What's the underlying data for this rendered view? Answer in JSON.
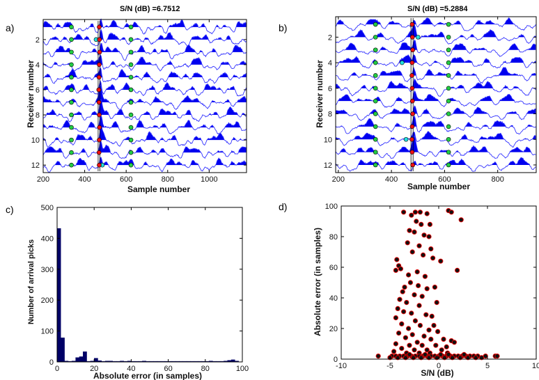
{
  "colors": {
    "trace_fill": "#0000ee",
    "trace_line": "#3333ff",
    "pick_red": "#ee1111",
    "pick_green": "#22cc44",
    "pick_cyan": "#22dddd",
    "hist_bar": "#000066",
    "scatter_fill": "#111111",
    "scatter_edge": "#dd0000"
  },
  "chart_data": [
    {
      "id": "a",
      "type": "line",
      "panel_label": "a)",
      "title": "S/N (dB) =6.7512",
      "xlabel": "Sample number",
      "ylabel": "Receiver number",
      "xlim": [
        200,
        1180
      ],
      "ylim": [
        12.6,
        0.4
      ],
      "xticks": [
        200,
        400,
        600,
        800,
        1000
      ],
      "yticks": [
        2,
        4,
        6,
        8,
        10,
        12
      ],
      "receivers": 12,
      "picks": {
        "green": [
          336,
          623
        ],
        "red": [
          470,
          471,
          472,
          470,
          469,
          468,
          469,
          470,
          471,
          470,
          469,
          470
        ],
        "cyan": [
          null,
          455,
          null,
          null,
          null,
          null,
          null,
          null,
          null,
          null,
          null,
          485
        ]
      }
    },
    {
      "id": "b",
      "type": "line",
      "panel_label": "b)",
      "title": "S/N (dB) =5.2884",
      "xlabel": "Sample number",
      "ylabel": "Receiver number",
      "xlim": [
        190,
        945
      ],
      "ylim": [
        12.6,
        0.4
      ],
      "xticks": [
        200,
        400,
        600,
        800
      ],
      "yticks": [
        2,
        4,
        6,
        8,
        10,
        12
      ],
      "receivers": 12,
      "picks": {
        "green": [
          340,
          615
        ],
        "red": [
          478,
          479,
          480,
          478,
          477,
          478,
          479,
          480,
          478,
          477,
          478,
          480
        ],
        "cyan": [
          null,
          500,
          null,
          440,
          null,
          null,
          null,
          null,
          null,
          455,
          null,
          null
        ]
      }
    },
    {
      "id": "c",
      "type": "bar",
      "panel_label": "c)",
      "xlabel": "Absolute error  (in samples)",
      "ylabel": "Number of arrival picks",
      "xlim": [
        0,
        100
      ],
      "ylim": [
        0,
        500
      ],
      "xticks": [
        0,
        20,
        40,
        60,
        80,
        100
      ],
      "yticks": [
        0,
        100,
        200,
        300,
        400,
        500
      ],
      "bin_width": 2,
      "bin_centers": [
        1,
        3,
        5,
        7,
        9,
        11,
        13,
        15,
        17,
        19,
        21,
        23,
        25,
        27,
        29,
        31,
        33,
        35,
        37,
        39,
        41,
        43,
        45,
        47,
        49,
        51,
        53,
        55,
        57,
        59,
        61,
        63,
        65,
        67,
        69,
        71,
        73,
        75,
        77,
        79,
        81,
        83,
        85,
        87,
        89,
        91,
        93,
        95,
        97
      ],
      "values": [
        432,
        78,
        3,
        2,
        3,
        14,
        17,
        33,
        2,
        3,
        12,
        4,
        2,
        3,
        3,
        2,
        2,
        3,
        2,
        3,
        2,
        2,
        2,
        3,
        2,
        2,
        2,
        2,
        2,
        2,
        2,
        2,
        2,
        2,
        2,
        2,
        2,
        2,
        2,
        2,
        2,
        3,
        2,
        2,
        2,
        3,
        5,
        7,
        3
      ]
    },
    {
      "id": "d",
      "type": "scatter",
      "panel_label": "d)",
      "xlabel": "S/N (dB)",
      "ylabel": "Absolute error (in samples)",
      "xlim": [
        -10,
        10
      ],
      "ylim": [
        0,
        100
      ],
      "xticks": [
        -10,
        -5,
        0,
        5,
        10
      ],
      "yticks": [
        0,
        20,
        40,
        60,
        80,
        100
      ],
      "points": [
        [
          -3.6,
          96
        ],
        [
          -2.4,
          96
        ],
        [
          -1.9,
          96
        ],
        [
          -1.2,
          95
        ],
        [
          1.0,
          97
        ],
        [
          1.3,
          96
        ],
        [
          -2.8,
          94
        ],
        [
          2.3,
          91
        ],
        [
          -2.3,
          90
        ],
        [
          -1.8,
          88
        ],
        [
          -0.9,
          88
        ],
        [
          -3.0,
          84
        ],
        [
          -2.5,
          83
        ],
        [
          -1.5,
          81
        ],
        [
          -1.0,
          80
        ],
        [
          -3.2,
          76
        ],
        [
          -2.0,
          74
        ],
        [
          -0.8,
          72
        ],
        [
          -2.7,
          70
        ],
        [
          -1.6,
          68
        ],
        [
          -0.6,
          66
        ],
        [
          0.2,
          64
        ],
        [
          -4.3,
          65
        ],
        [
          -4.1,
          61
        ],
        [
          -3.9,
          59
        ],
        [
          -4.4,
          58
        ],
        [
          1.9,
          58
        ],
        [
          -2.2,
          57
        ],
        [
          -3.1,
          55
        ],
        [
          -1.4,
          54
        ],
        [
          -2.9,
          50
        ],
        [
          -2.1,
          48
        ],
        [
          -3.5,
          47
        ],
        [
          -0.4,
          47
        ],
        [
          -1.2,
          46
        ],
        [
          -3.7,
          44
        ],
        [
          -2.5,
          42
        ],
        [
          -1.7,
          41
        ],
        [
          -4.0,
          39
        ],
        [
          -3.3,
          37
        ],
        [
          -0.2,
          37
        ],
        [
          -2.0,
          35
        ],
        [
          -4.2,
          33
        ],
        [
          -3.6,
          31
        ],
        [
          -2.8,
          30
        ],
        [
          -1.3,
          29
        ],
        [
          -0.7,
          28
        ],
        [
          -4.4,
          27
        ],
        [
          -2.4,
          25
        ],
        [
          -3.8,
          23
        ],
        [
          -1.9,
          22
        ],
        [
          -0.5,
          22
        ],
        [
          -3.1,
          20
        ],
        [
          -1.0,
          19
        ],
        [
          -0.1,
          18
        ],
        [
          -4.1,
          17
        ],
        [
          -2.7,
          16
        ],
        [
          -1.5,
          15
        ],
        [
          -3.4,
          14
        ],
        [
          -0.8,
          13
        ],
        [
          0.5,
          13
        ],
        [
          1.3,
          12
        ],
        [
          1.6,
          11
        ],
        [
          -2.2,
          11
        ],
        [
          -4.4,
          10
        ],
        [
          -3.0,
          9
        ],
        [
          -1.7,
          9
        ],
        [
          -0.3,
          9
        ],
        [
          0.8,
          8
        ],
        [
          -3.8,
          7
        ],
        [
          -2.5,
          6
        ],
        [
          -1.2,
          6
        ],
        [
          0.3,
          6
        ],
        [
          -4.6,
          5
        ],
        [
          -3.3,
          4
        ],
        [
          -2.0,
          4
        ],
        [
          -0.9,
          4
        ],
        [
          0.9,
          4
        ],
        [
          -6.2,
          2
        ],
        [
          -4.8,
          2
        ],
        [
          -4.4,
          2
        ],
        [
          -4.0,
          2
        ],
        [
          -3.6,
          2
        ],
        [
          -3.2,
          2
        ],
        [
          -2.8,
          2
        ],
        [
          -2.4,
          2
        ],
        [
          -2.0,
          2
        ],
        [
          -1.6,
          2
        ],
        [
          -1.2,
          2
        ],
        [
          -0.8,
          2
        ],
        [
          -0.4,
          2
        ],
        [
          0.0,
          2
        ],
        [
          0.4,
          2
        ],
        [
          0.8,
          2
        ],
        [
          1.2,
          2
        ],
        [
          1.6,
          2
        ],
        [
          2.0,
          2
        ],
        [
          2.4,
          2
        ],
        [
          2.8,
          2
        ],
        [
          3.2,
          2
        ],
        [
          3.6,
          2
        ],
        [
          4.0,
          2
        ],
        [
          4.8,
          2
        ],
        [
          5.8,
          2
        ],
        [
          6.0,
          2
        ],
        [
          -5.0,
          1
        ],
        [
          -4.2,
          1
        ],
        [
          -3.4,
          1
        ],
        [
          -2.6,
          1
        ],
        [
          -1.8,
          1
        ],
        [
          -1.0,
          1
        ],
        [
          -0.2,
          1
        ],
        [
          0.6,
          1
        ],
        [
          1.4,
          1
        ],
        [
          2.2,
          1
        ],
        [
          3.0,
          1
        ],
        [
          3.8,
          1
        ],
        [
          4.4,
          1
        ],
        [
          -3.0,
          3
        ],
        [
          -1.4,
          3
        ],
        [
          0.2,
          3
        ],
        [
          1.0,
          3
        ],
        [
          2.6,
          3
        ]
      ]
    }
  ]
}
